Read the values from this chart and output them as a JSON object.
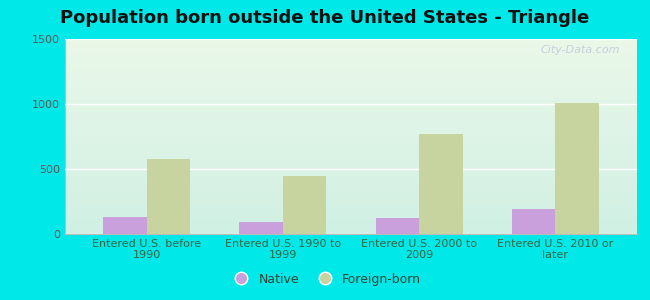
{
  "title": "Population born outside the United States - Triangle",
  "categories": [
    "Entered U.S. before\n1990",
    "Entered U.S. 1990 to\n1999",
    "Entered U.S. 2000 to\n2009",
    "Entered U.S. 2010 or\nlater"
  ],
  "native_values": [
    130,
    95,
    120,
    190
  ],
  "foreign_values": [
    580,
    450,
    770,
    1010
  ],
  "native_color": "#c9a0dc",
  "foreign_color": "#c8d4a0",
  "bg_color_top": "#eaf8e8",
  "bg_color_bottom": "#d0f0e4",
  "outer_bg": "#00e8e8",
  "ylim": [
    0,
    1500
  ],
  "yticks": [
    0,
    500,
    1000,
    1500
  ],
  "bar_width": 0.32,
  "title_fontsize": 13,
  "tick_fontsize": 8,
  "legend_fontsize": 9,
  "watermark": "City-Data.com"
}
